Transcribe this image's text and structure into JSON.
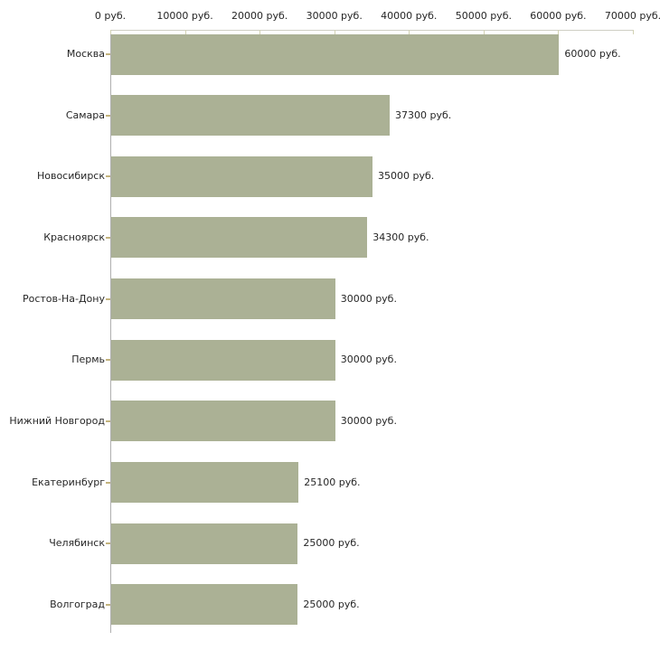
{
  "chart_data": {
    "type": "bar",
    "orientation": "horizontal",
    "title": "",
    "unit": "руб.",
    "categories": [
      "Москва",
      "Самара",
      "Новосибирск",
      "Красноярск",
      "Ростов-На-Дону",
      "Пермь",
      "Нижний Новгород",
      "Екатеринбург",
      "Челябинск",
      "Волгоград"
    ],
    "values": [
      60000,
      37300,
      35000,
      34300,
      30000,
      30000,
      30000,
      25100,
      25000,
      25000
    ],
    "value_labels": [
      "60000 руб.",
      "37300 руб.",
      "35000 руб.",
      "34300 руб.",
      "30000 руб.",
      "30000 руб.",
      "30000 руб.",
      "25100 руб.",
      "25000 руб.",
      "25000 руб."
    ],
    "x_axis": {
      "position": "top",
      "min": 0,
      "max": 70000,
      "ticks": [
        0,
        10000,
        20000,
        30000,
        40000,
        50000,
        60000,
        70000
      ],
      "tick_labels": [
        "0 руб.",
        "10000 руб.",
        "20000 руб.",
        "30000 руб.",
        "40000 руб.",
        "50000 руб.",
        "60000 руб.",
        "70000 руб."
      ]
    },
    "legend": "none",
    "grid": "off",
    "colors": {
      "bar": "#abb195",
      "axis_line": "#cfcfc4",
      "vertical_axis_line": "#b0b0b0",
      "x_tick": "#d2d2b4",
      "category_tick": "#c3b37d",
      "text": "#262626",
      "background": "#ffffff"
    }
  }
}
